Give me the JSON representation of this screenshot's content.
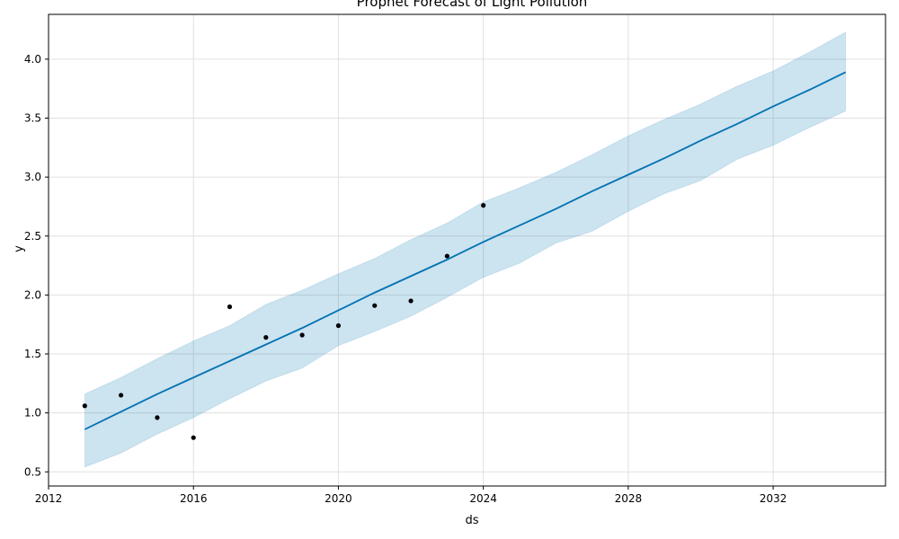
{
  "chart_data": {
    "type": "line",
    "title": "Prophet Forecast of Light Pollution",
    "xlabel": "ds",
    "ylabel": "y",
    "x_axis": {
      "type": "year",
      "range": [
        2012,
        2035.1
      ],
      "ticks": [
        2012,
        2016,
        2020,
        2024,
        2028,
        2032
      ],
      "tick_labels": [
        "2012",
        "2016",
        "2020",
        "2024",
        "2028",
        "2032"
      ]
    },
    "y_axis": {
      "range": [
        0.38,
        4.38
      ],
      "ticks": [
        0.5,
        1.0,
        1.5,
        2.0,
        2.5,
        3.0,
        3.5,
        4.0
      ],
      "tick_labels": [
        "0.5",
        "1.0",
        "1.5",
        "2.0",
        "2.5",
        "3.0",
        "3.5",
        "4.0"
      ]
    },
    "grid": true,
    "observed": {
      "x": [
        2013,
        2014,
        2015,
        2016,
        2017,
        2018,
        2019,
        2020,
        2021,
        2022,
        2023,
        2024
      ],
      "y": [
        1.06,
        1.15,
        0.96,
        0.79,
        1.9,
        1.64,
        1.66,
        1.74,
        1.91,
        1.95,
        2.33,
        2.76
      ],
      "color": "#000000"
    },
    "forecast": {
      "x": [
        2013,
        2014,
        2015,
        2016,
        2017,
        2018,
        2019,
        2020,
        2021,
        2022,
        2023,
        2024,
        2025,
        2026,
        2027,
        2028,
        2029,
        2030,
        2031,
        2032,
        2033,
        2034
      ],
      "yhat": [
        0.86,
        1.01,
        1.16,
        1.3,
        1.44,
        1.58,
        1.72,
        1.87,
        2.02,
        2.16,
        2.3,
        2.45,
        2.59,
        2.73,
        2.88,
        3.02,
        3.16,
        3.31,
        3.45,
        3.6,
        3.74,
        3.89
      ],
      "yhat_upper": [
        1.16,
        1.3,
        1.46,
        1.61,
        1.74,
        1.92,
        2.04,
        2.18,
        2.31,
        2.47,
        2.61,
        2.79,
        2.91,
        3.04,
        3.19,
        3.35,
        3.49,
        3.62,
        3.77,
        3.9,
        4.06,
        4.23
      ],
      "yhat_lower": [
        0.54,
        0.66,
        0.82,
        0.96,
        1.12,
        1.27,
        1.38,
        1.57,
        1.69,
        1.82,
        1.98,
        2.15,
        2.27,
        2.44,
        2.54,
        2.71,
        2.86,
        2.97,
        3.15,
        3.27,
        3.42,
        3.56
      ],
      "line_color": "#0072b2",
      "band_color": "#0072b2"
    }
  }
}
